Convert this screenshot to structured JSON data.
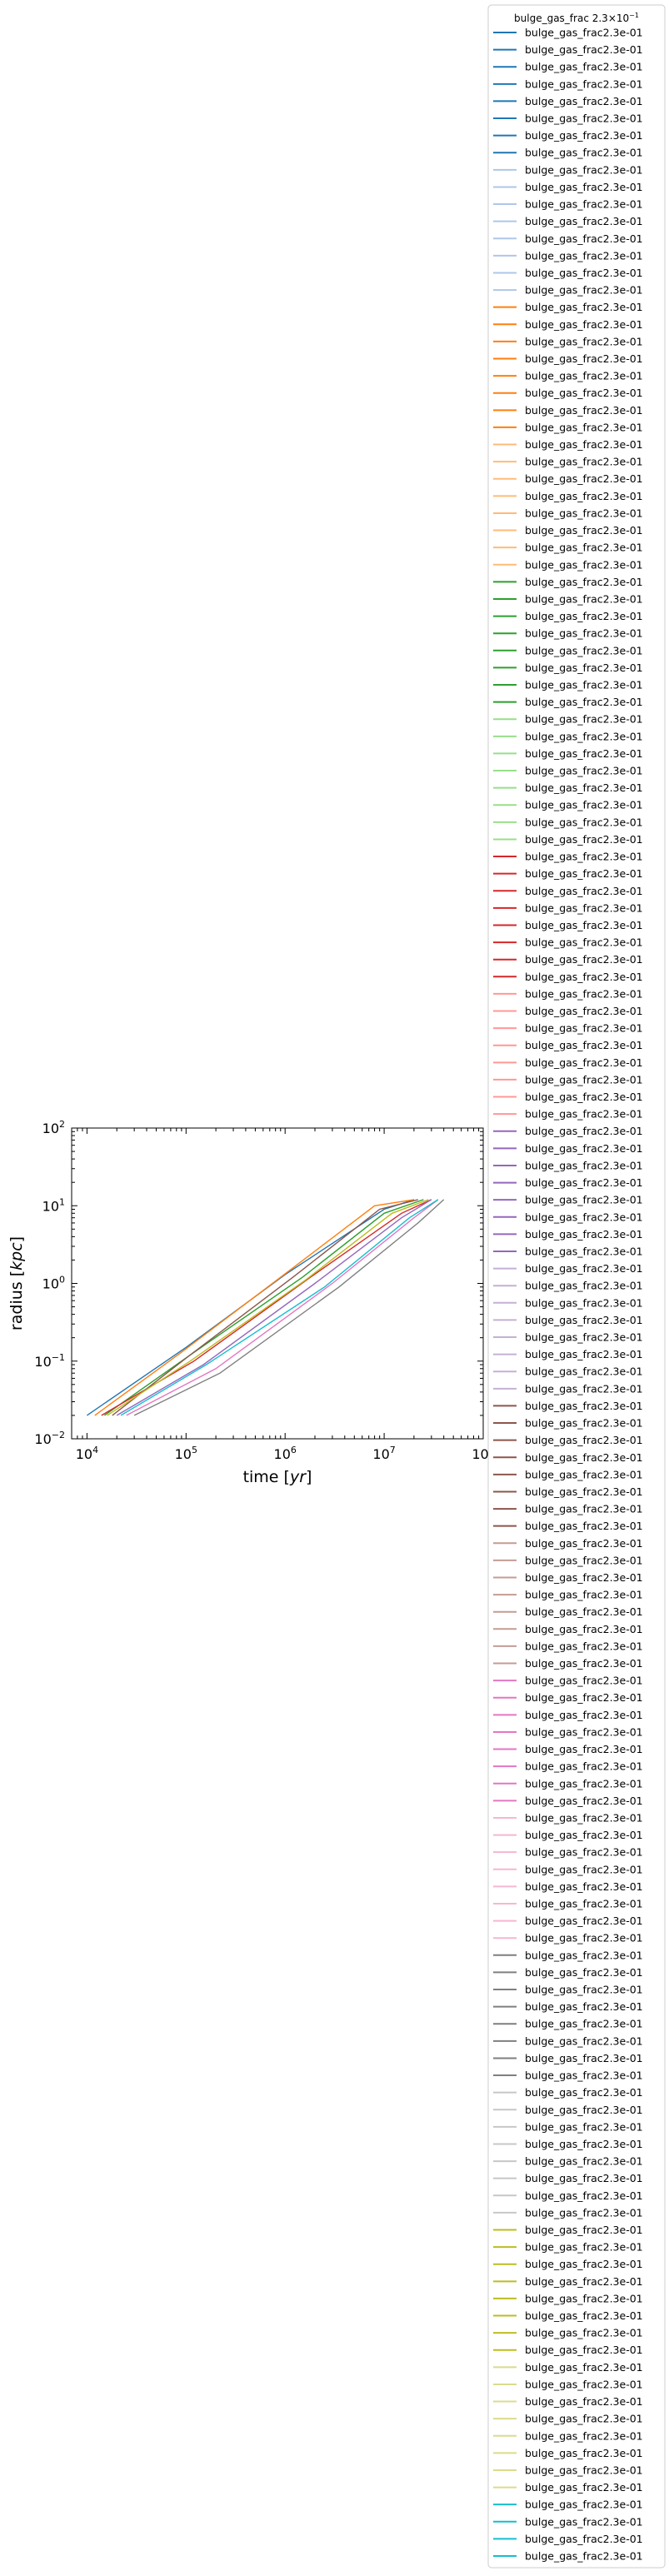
{
  "chart_data": {
    "type": "line",
    "title": "",
    "xlabel": "time [yr]",
    "ylabel": "radius [kpc]",
    "xscale": "log",
    "yscale": "log",
    "xlim": [
      7000,
      100000000
    ],
    "ylim": [
      0.01,
      100
    ],
    "x_ticks": [
      {
        "value": 10000,
        "mantissa": "10",
        "exp": "4"
      },
      {
        "value": 100000,
        "mantissa": "10",
        "exp": "5"
      },
      {
        "value": 1000000,
        "mantissa": "10",
        "exp": "6"
      },
      {
        "value": 10000000,
        "mantissa": "10",
        "exp": "7"
      },
      {
        "value": 100000000,
        "mantissa": "10",
        "exp": "8"
      }
    ],
    "y_ticks": [
      {
        "value": 0.01,
        "mantissa": "10",
        "exp": "−2"
      },
      {
        "value": 0.1,
        "mantissa": "10",
        "exp": "−1"
      },
      {
        "value": 1,
        "mantissa": "10",
        "exp": "0"
      },
      {
        "value": 10,
        "mantissa": "10",
        "exp": "1"
      },
      {
        "value": 100,
        "mantissa": "10",
        "exp": "2"
      }
    ],
    "grid": false,
    "legend": {
      "placement": "right, outside axes",
      "title_prefix": "bulge_gas_frac 2.3",
      "title_times": "×",
      "title_base": "10",
      "title_exp": "−1",
      "entry_label": "bulge_gas_frac2.3e-01",
      "entry_count": 148
    },
    "palette": [
      "#1f77b4",
      "#aec7e8",
      "#ff7f0e",
      "#ffbb78",
      "#2ca02c",
      "#98df8a",
      "#d62728",
      "#ff9896",
      "#9467bd",
      "#c5b0d5",
      "#8c564b",
      "#c49c94",
      "#e377c2",
      "#f7b6d2",
      "#7f7f7f",
      "#c7c7c7",
      "#bcbd22",
      "#dbdb8d",
      "#17becf",
      "#9edae5"
    ],
    "series_per_color": 8,
    "series": [
      {
        "x": [
          10000,
          100000,
          1000000,
          10000000,
          20000000
        ],
        "y": [
          0.02,
          0.15,
          1.3,
          9,
          12
        ]
      },
      {
        "x": [
          12000,
          90000,
          900000,
          8000000,
          20000000
        ],
        "y": [
          0.02,
          0.13,
          1.2,
          10,
          12
        ]
      },
      {
        "x": [
          15000,
          100000,
          1500000,
          10000000,
          25000000
        ],
        "y": [
          0.02,
          0.11,
          1.2,
          8,
          12
        ]
      },
      {
        "x": [
          14000,
          120000,
          1800000,
          15000000,
          30000000
        ],
        "y": [
          0.02,
          0.1,
          1.2,
          8,
          12
        ]
      },
      {
        "x": [
          20000,
          150000,
          2000000,
          15000000,
          30000000
        ],
        "y": [
          0.02,
          0.09,
          1.0,
          7,
          12
        ]
      },
      {
        "x": [
          18000,
          110000,
          1200000,
          9000000,
          22000000
        ],
        "y": [
          0.02,
          0.12,
          1.2,
          9,
          12
        ]
      },
      {
        "x": [
          25000,
          200000,
          3000000,
          20000000,
          35000000
        ],
        "y": [
          0.02,
          0.08,
          1.0,
          7,
          12
        ]
      },
      {
        "x": [
          30000,
          220000,
          3500000,
          22000000,
          40000000
        ],
        "y": [
          0.02,
          0.07,
          0.9,
          6,
          12
        ]
      },
      {
        "x": [
          16000,
          110000,
          1600000,
          12000000,
          28000000
        ],
        "y": [
          0.02,
          0.1,
          1.1,
          8,
          12
        ]
      },
      {
        "x": [
          22000,
          160000,
          2500000,
          18000000,
          35000000
        ],
        "y": [
          0.02,
          0.09,
          0.9,
          7,
          12
        ]
      }
    ]
  }
}
